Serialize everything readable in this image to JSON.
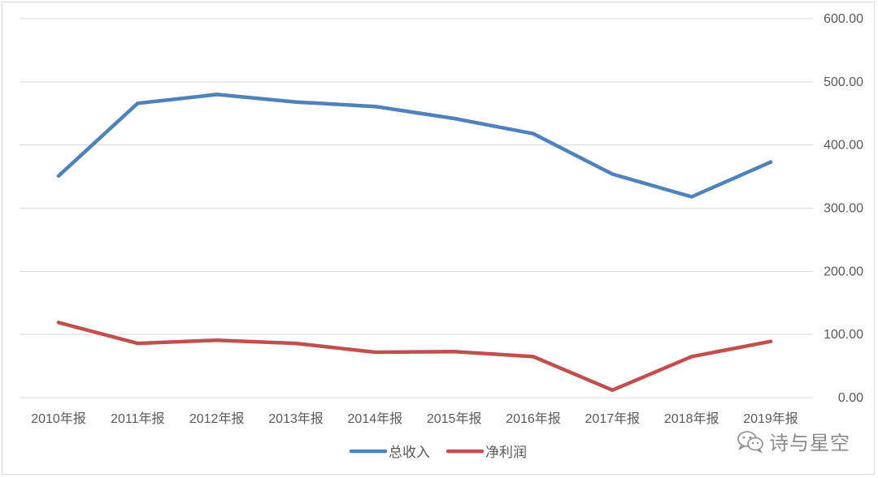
{
  "chart_data": {
    "type": "line",
    "categories": [
      "2010年报",
      "2011年报",
      "2012年报",
      "2013年报",
      "2014年报",
      "2015年报",
      "2016年报",
      "2017年报",
      "2018年报",
      "2019年报"
    ],
    "series": [
      {
        "name": "总收入",
        "color": "#4f81bd",
        "values": [
          351,
          466,
          480,
          468,
          461,
          442,
          418,
          354,
          318,
          373
        ]
      },
      {
        "name": "净利润",
        "color": "#c0504d",
        "values": [
          119,
          86,
          91,
          86,
          72,
          73,
          65,
          12,
          65,
          89
        ]
      }
    ],
    "yticks": [
      "0.00",
      "100.00",
      "200.00",
      "300.00",
      "400.00",
      "500.00",
      "600.00"
    ],
    "ylim": [
      0,
      600
    ],
    "y_axis_side": "right",
    "grid": true,
    "legend": "bottom-center"
  },
  "watermark": {
    "text": "诗与星空",
    "icon": "wechat-icon"
  }
}
